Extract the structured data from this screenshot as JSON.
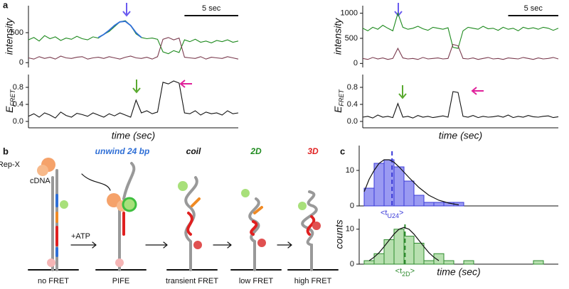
{
  "panel_labels": [
    "a",
    "b",
    "c"
  ],
  "chart_data": [
    {
      "type": "line",
      "ylabel": "intensity",
      "x": [
        0,
        1,
        2,
        3,
        4,
        5,
        6,
        7,
        8,
        9,
        10,
        11,
        12,
        13,
        14,
        15,
        16,
        17,
        18,
        19,
        20,
        21,
        22,
        23,
        24,
        25,
        26,
        27,
        28,
        29,
        30,
        31,
        32,
        33,
        34,
        35,
        36,
        37,
        38,
        39
      ],
      "xlim": [
        0,
        39
      ],
      "ylim": [
        -80,
        950
      ],
      "yticks": [
        0,
        500
      ],
      "scale_bar": {
        "value": 10,
        "label": "5 sec"
      },
      "series": [
        {
          "color": "#1e8a1e",
          "values": [
            380,
            420,
            360,
            450,
            400,
            430,
            370,
            410,
            390,
            440,
            400,
            380,
            430,
            410,
            470,
            520,
            600,
            680,
            700,
            620,
            480,
            420,
            400,
            410,
            390,
            180,
            150,
            200,
            170,
            380,
            350,
            390,
            340,
            360,
            330,
            370,
            350,
            380,
            340,
            360
          ]
        },
        {
          "color": "#7a3b4e",
          "values": [
            80,
            60,
            100,
            70,
            90,
            60,
            110,
            80,
            70,
            90,
            100,
            60,
            80,
            90,
            70,
            100,
            80,
            60,
            90,
            110,
            80,
            70,
            90,
            60,
            100,
            390,
            420,
            380,
            410,
            90,
            80,
            70,
            100,
            60,
            90,
            80,
            70,
            100,
            80,
            60
          ]
        },
        {
          "color": "#2f6fd6",
          "values": [
            null,
            null,
            null,
            null,
            null,
            null,
            null,
            null,
            null,
            null,
            null,
            null,
            null,
            420,
            470,
            540,
            620,
            680,
            690,
            620,
            500,
            420,
            null,
            null,
            null,
            null,
            null,
            null,
            null,
            null,
            null,
            null,
            null,
            null,
            null,
            null,
            null,
            null,
            null,
            null
          ]
        }
      ]
    },
    {
      "type": "line",
      "ylabel": [
        "E",
        "FRET"
      ],
      "xlabel": "time (sec)",
      "x": [
        0,
        1,
        2,
        3,
        4,
        5,
        6,
        7,
        8,
        9,
        10,
        11,
        12,
        13,
        14,
        15,
        16,
        17,
        18,
        19,
        20,
        21,
        22,
        23,
        24,
        25,
        26,
        27,
        28,
        29,
        30,
        31,
        32,
        33,
        34,
        35,
        36,
        37,
        38,
        39
      ],
      "xlim": [
        0,
        39
      ],
      "ylim": [
        -0.15,
        1.1
      ],
      "yticks": [
        {
          "value": 0,
          "label": "0.0"
        },
        0.4,
        0.8
      ],
      "series": [
        {
          "color": "#111111",
          "values": [
            0.12,
            0.18,
            0.1,
            0.2,
            0.15,
            0.08,
            0.22,
            0.14,
            0.1,
            0.19,
            0.16,
            0.12,
            0.2,
            0.15,
            0.1,
            0.18,
            0.13,
            0.2,
            0.15,
            0.1,
            0.5,
            0.2,
            0.25,
            0.18,
            0.22,
            0.92,
            0.88,
            0.95,
            0.9,
            0.2,
            0.18,
            0.25,
            0.15,
            0.22,
            0.18,
            0.2,
            0.15,
            0.25,
            0.18,
            0.2
          ]
        }
      ]
    },
    {
      "type": "line",
      "ylabel": "intensity",
      "x": [
        0,
        1,
        2,
        3,
        4,
        5,
        6,
        7,
        8,
        9,
        10,
        11,
        12,
        13,
        14,
        15,
        16,
        17,
        18,
        19,
        20,
        21,
        22,
        23,
        24,
        25,
        26,
        27,
        28,
        29,
        30,
        31,
        32,
        33,
        34,
        35,
        36,
        37,
        38,
        39
      ],
      "xlim": [
        0,
        39
      ],
      "ylim": [
        -80,
        1150
      ],
      "yticks": [
        0,
        500,
        1000
      ],
      "scale_bar": {
        "value": 10,
        "label": "5 sec"
      },
      "series": [
        {
          "color": "#1e8a1e",
          "values": [
            700,
            650,
            720,
            680,
            760,
            700,
            650,
            1000,
            720,
            680,
            700,
            740,
            690,
            660,
            720,
            700,
            680,
            710,
            320,
            300,
            650,
            720,
            700,
            680,
            740,
            690,
            700,
            660,
            720,
            680,
            700,
            650,
            720,
            690,
            710,
            680,
            720,
            700,
            660,
            700
          ]
        },
        {
          "color": "#7a3b4e",
          "values": [
            100,
            80,
            120,
            90,
            110,
            80,
            100,
            300,
            110,
            90,
            100,
            80,
            120,
            90,
            100,
            110,
            90,
            100,
            380,
            350,
            100,
            90,
            110,
            80,
            100,
            120,
            90,
            100,
            80,
            110,
            100,
            90,
            120,
            100,
            80,
            110,
            90,
            100,
            120,
            90
          ]
        }
      ]
    },
    {
      "type": "line",
      "ylabel": [
        "E",
        "FRET"
      ],
      "xlabel": "time (sec)",
      "x": [
        0,
        1,
        2,
        3,
        4,
        5,
        6,
        7,
        8,
        9,
        10,
        11,
        12,
        13,
        14,
        15,
        16,
        17,
        18,
        19,
        20,
        21,
        22,
        23,
        24,
        25,
        26,
        27,
        28,
        29,
        30,
        31,
        32,
        33,
        34,
        35,
        36,
        37,
        38,
        39
      ],
      "xlim": [
        0,
        39
      ],
      "ylim": [
        -0.15,
        1.1
      ],
      "yticks": [
        {
          "value": 0,
          "label": "0.0"
        },
        0.4,
        0.8
      ],
      "series": [
        {
          "color": "#111111",
          "values": [
            0.1,
            0.12,
            0.08,
            0.15,
            0.1,
            0.12,
            0.09,
            0.42,
            0.1,
            0.12,
            0.08,
            0.14,
            0.1,
            0.12,
            0.09,
            0.11,
            0.13,
            0.1,
            0.7,
            0.68,
            0.12,
            0.1,
            0.14,
            0.09,
            0.12,
            0.1,
            0.11,
            0.13,
            0.1,
            0.15,
            0.09,
            0.12,
            0.1,
            0.14,
            0.11,
            0.1,
            0.12,
            0.13,
            0.09,
            0.11
          ]
        }
      ]
    },
    {
      "type": "histogram",
      "color": "#9a9af2",
      "edge_color": "#3a3ad8",
      "bins": [
        0.5,
        1.5,
        2.5,
        3.5,
        4.5,
        5.5,
        6.5,
        7.5,
        8.5,
        9.5,
        10.5
      ],
      "values": [
        5,
        12,
        13,
        11,
        7,
        3,
        1,
        1,
        1,
        1
      ],
      "xlim": [
        0,
        20
      ],
      "ylim": [
        0,
        17
      ],
      "yticks": [
        0,
        10
      ],
      "mean": 3.3,
      "mean_label": [
        "<t",
        "U24",
        ">"
      ],
      "fit": {
        "color": "#111111",
        "x": [
          0.5,
          1,
          1.5,
          2,
          2.5,
          3,
          3.5,
          4,
          4.5,
          5,
          6,
          7,
          8,
          9,
          10
        ],
        "values": [
          4,
          7.5,
          10,
          12,
          13,
          13,
          12.3,
          11,
          9.5,
          8,
          5.2,
          3,
          1.6,
          0.8,
          0.3
        ]
      }
    },
    {
      "type": "histogram",
      "color": "#b8e0b0",
      "edge_color": "#2e8b2e",
      "bins": [
        0.5,
        1.5,
        2.5,
        3.5,
        4.5,
        5.5,
        6.5,
        7.5,
        8.5,
        9.5,
        10.5,
        11.5,
        12.5,
        13.5,
        14.5,
        15.5,
        16.5,
        17.5,
        18.5,
        19.5
      ],
      "values": [
        1,
        3,
        7,
        10,
        8,
        6,
        1,
        3,
        1,
        0,
        1,
        0,
        0,
        0,
        0,
        0,
        0,
        1,
        0
      ],
      "xlim": [
        0,
        20
      ],
      "ylim": [
        0,
        13
      ],
      "yticks": [
        0,
        10
      ],
      "mean": 4.6,
      "mean_label": [
        "<t",
        "2D",
        ">"
      ],
      "ylabel": "counts",
      "xlabel": "time (sec)",
      "fit": {
        "color": "#111111",
        "x": [
          1,
          1.5,
          2,
          2.5,
          3,
          3.5,
          4,
          4.5,
          5,
          5.5,
          6,
          6.5,
          7,
          7.5,
          8
        ],
        "values": [
          1,
          2,
          3.3,
          5,
          6.8,
          8.6,
          10,
          10.5,
          10,
          8.6,
          6.8,
          5,
          3.3,
          2,
          1
        ]
      }
    }
  ],
  "diagram": {
    "rep_x": "Rep-X",
    "cdna": "cDNA",
    "atp": "+ATP",
    "steps": [
      "unwind 24 bp",
      "coil",
      "2D",
      "3D"
    ],
    "states": [
      "no FRET",
      "PIFE",
      "transient FRET",
      "low FRET",
      "high FRET"
    ]
  }
}
